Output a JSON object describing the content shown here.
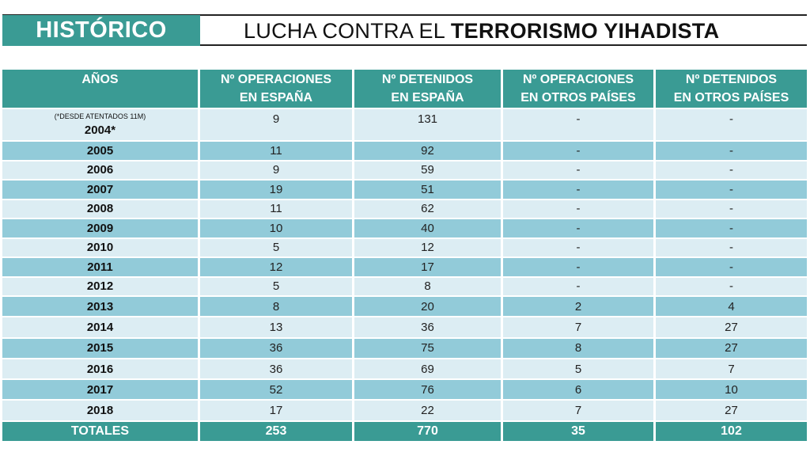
{
  "header": {
    "tag": "HISTÓRICO",
    "title_regular": "LUCHA CONTRA EL ",
    "title_bold": "TERRORISMO YIHADISTA"
  },
  "table": {
    "columns": [
      [
        "AÑOS",
        ""
      ],
      [
        "Nº OPERACIONES",
        "EN ESPAÑA"
      ],
      [
        "Nº DETENIDOS",
        "EN ESPAÑA"
      ],
      [
        "Nº OPERACIONES",
        "EN OTROS PAÍSES"
      ],
      [
        "Nº DETENIDOS",
        "EN OTROS PAÍSES"
      ]
    ],
    "first_row_note": "(*DESDE ATENTADOS 11M)",
    "rows": [
      [
        "2004*",
        "9",
        "131",
        "-",
        "-"
      ],
      [
        "2005",
        "11",
        "92",
        "-",
        "-"
      ],
      [
        "2006",
        "9",
        "59",
        "-",
        "-"
      ],
      [
        "2007",
        "19",
        "51",
        "-",
        "-"
      ],
      [
        "2008",
        "11",
        "62",
        "-",
        "-"
      ],
      [
        "2009",
        "10",
        "40",
        "-",
        "-"
      ],
      [
        "2010",
        "5",
        "12",
        "-",
        "-"
      ],
      [
        "2011",
        "12",
        "17",
        "-",
        "-"
      ],
      [
        "2012",
        "5",
        "8",
        "-",
        "-"
      ],
      [
        "2013",
        "8",
        "20",
        "2",
        "4"
      ],
      [
        "2014",
        "13",
        "36",
        "7",
        "27"
      ],
      [
        "2015",
        "36",
        "75",
        "8",
        "27"
      ],
      [
        "2016",
        "36",
        "69",
        "5",
        "7"
      ],
      [
        "2017",
        "52",
        "76",
        "6",
        "10"
      ],
      [
        "2018",
        "17",
        "22",
        "7",
        "27"
      ]
    ],
    "totals": [
      "TOTALES",
      "253",
      "770",
      "35",
      "102"
    ]
  },
  "colors": {
    "teal": "#3a9b94",
    "row_dark": "#92cbd9",
    "row_light": "#dcedf3"
  }
}
